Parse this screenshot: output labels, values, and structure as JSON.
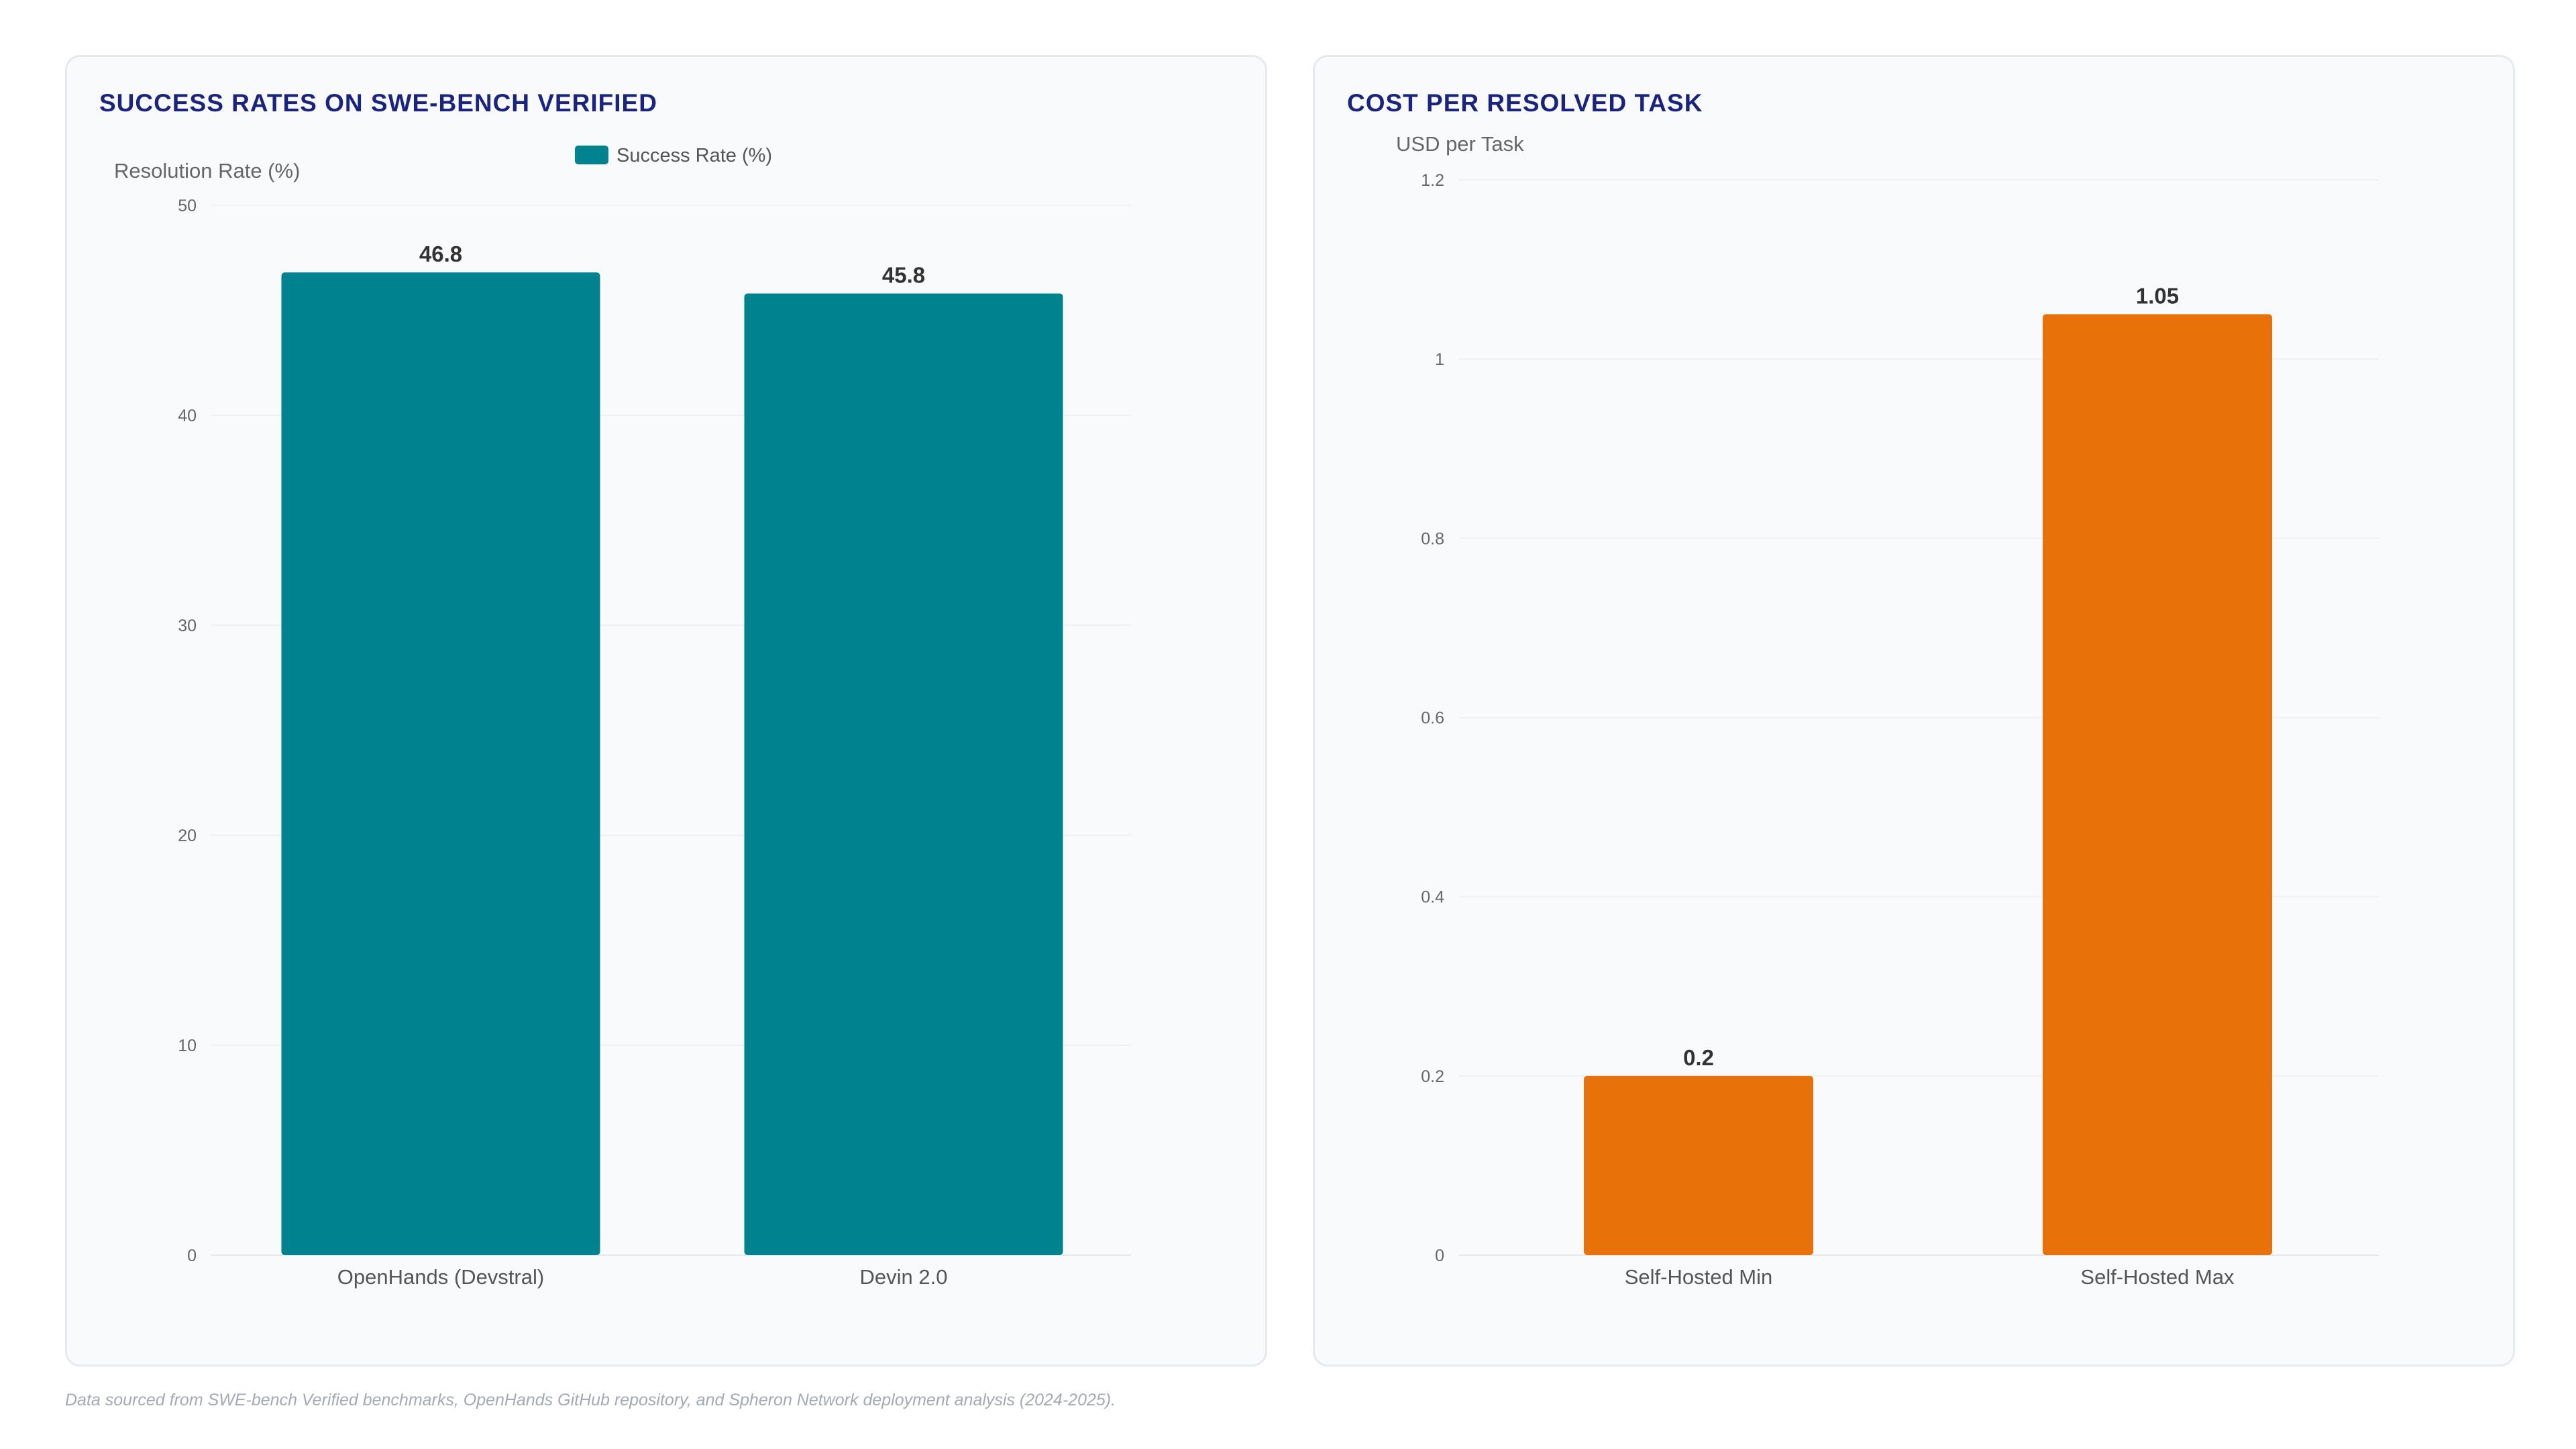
{
  "colors": {
    "teal": "#00838f",
    "orange": "#e8710a",
    "title": "#1a237e"
  },
  "footnote": "Data sourced from SWE-bench Verified benchmarks, OpenHands GitHub repository, and Spheron Network deployment analysis (2024-2025).",
  "chart_data": [
    {
      "type": "bar",
      "title": "SUCCESS RATES ON SWE-BENCH VERIFIED",
      "ylabel": "Resolution Rate (%)",
      "xlabel": "",
      "categories": [
        "OpenHands (Devstral)",
        "Devin 2.0"
      ],
      "series": [
        {
          "name": "Success Rate (%)",
          "values": [
            46.8,
            45.8
          ]
        }
      ],
      "ylim": [
        0,
        50
      ],
      "yticks": [
        "0",
        "10",
        "20",
        "30",
        "40",
        "50"
      ],
      "grid": true,
      "legend": "top-center",
      "color": "#00838f"
    },
    {
      "type": "bar",
      "title": "COST PER RESOLVED TASK",
      "ylabel": "USD per Task",
      "xlabel": "",
      "categories": [
        "Self-Hosted Min",
        "Self-Hosted Max"
      ],
      "series": [
        {
          "values": [
            0.2,
            1.05
          ]
        }
      ],
      "ylim": [
        0,
        1.2
      ],
      "yticks": [
        "0",
        "0.2",
        "0.4",
        "0.6",
        "0.8",
        "1",
        "1.2"
      ],
      "grid": true,
      "legend": "none",
      "color": "#e8710a"
    }
  ]
}
